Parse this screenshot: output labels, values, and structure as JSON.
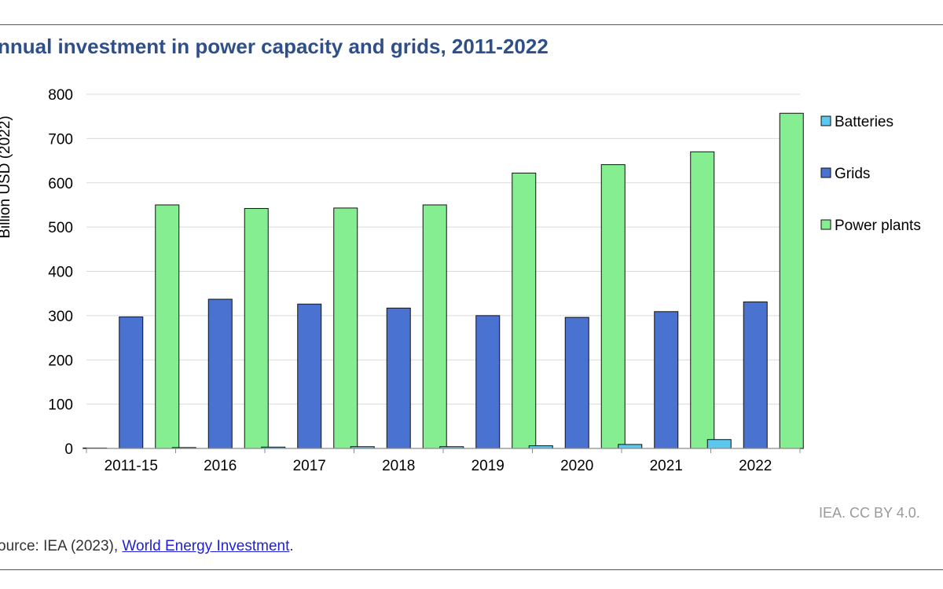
{
  "chart_data": {
    "type": "bar",
    "title": "nnual investment in power capacity and grids, 2011-2022",
    "ylabel": "Billion USD (2022)",
    "ylim": [
      0,
      800
    ],
    "yticks": [
      0,
      100,
      200,
      300,
      400,
      500,
      600,
      700,
      800
    ],
    "grid": true,
    "legend_position": "right",
    "categories": [
      "2011-15",
      "2016",
      "2017",
      "2018",
      "2019",
      "2020",
      "2021",
      "2022"
    ],
    "series": [
      {
        "name": "Batteries",
        "color": "#5bc8f0",
        "values": [
          1,
          2,
          3,
          4,
          4,
          6,
          9,
          20
        ]
      },
      {
        "name": "Grids",
        "color": "#4a72d0",
        "values": [
          297,
          337,
          326,
          317,
          300,
          296,
          309,
          331
        ]
      },
      {
        "name": "Power plants",
        "color": "#85ee91",
        "values": [
          550,
          542,
          543,
          550,
          622,
          641,
          670,
          757
        ]
      }
    ]
  },
  "footer": {
    "credit": "IEA. CC BY 4.0.",
    "source_prefix": "ource: IEA (2023), ",
    "source_link": "World Energy Investment",
    "source_suffix": "."
  }
}
